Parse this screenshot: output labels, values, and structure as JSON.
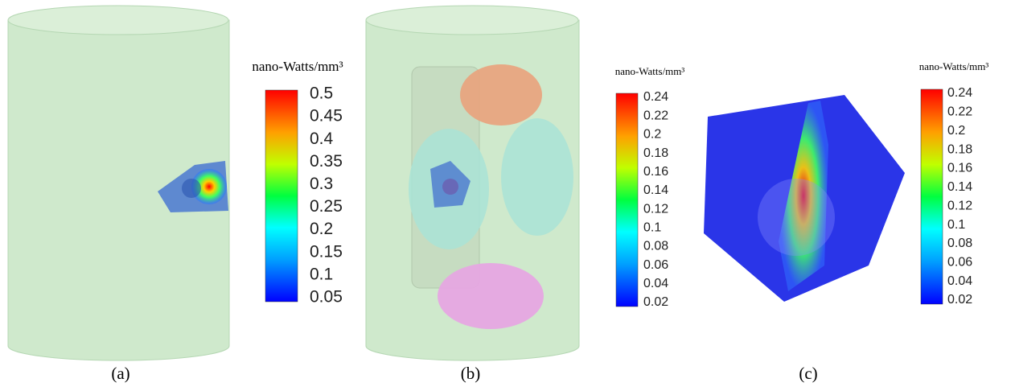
{
  "panels": [
    {
      "label": "(a)",
      "colorbar": {
        "title": "nano-Watts/mm³",
        "ticks": [
          "0.5",
          "0.45",
          "0.4",
          "0.35",
          "0.3",
          "0.25",
          "0.2",
          "0.15",
          "0.1",
          "0.05"
        ]
      }
    },
    {
      "label": "(b)",
      "colorbar": {
        "title": "nano-Watts/mm³",
        "ticks": [
          "0.24",
          "0.22",
          "0.2",
          "0.18",
          "0.16",
          "0.14",
          "0.12",
          "0.1",
          "0.08",
          "0.06",
          "0.04",
          "0.02"
        ]
      }
    },
    {
      "label": "(c)",
      "colorbar": {
        "title": "nano-Watts/mm³",
        "ticks": [
          "0.24",
          "0.22",
          "0.2",
          "0.18",
          "0.16",
          "0.14",
          "0.12",
          "0.1",
          "0.08",
          "0.06",
          "0.04",
          "0.02"
        ]
      }
    }
  ]
}
